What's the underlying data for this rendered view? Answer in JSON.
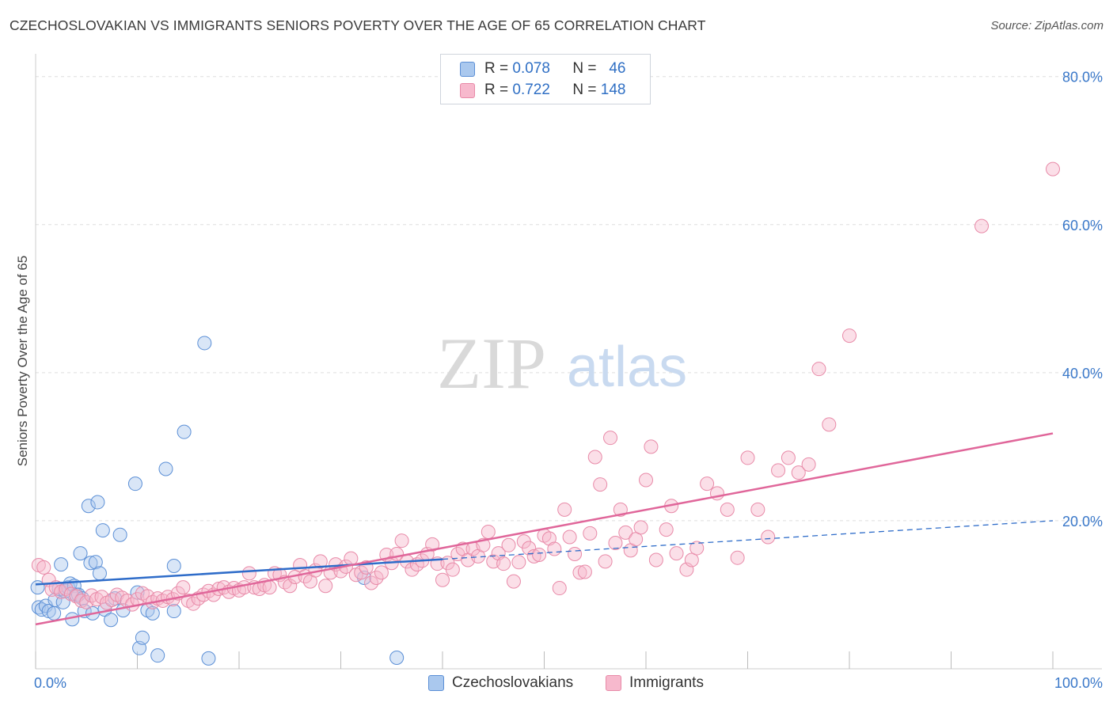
{
  "header": {
    "title": "CZECHOSLOVAKIAN VS IMMIGRANTS SENIORS POVERTY OVER THE AGE OF 65 CORRELATION CHART",
    "source": "Source: ZipAtlas.com"
  },
  "watermark": {
    "zip": "ZIP",
    "atlas": "atlas"
  },
  "legend": {
    "rows": [
      {
        "r_label": "R =",
        "r_value": "0.078",
        "n_label": "N =",
        "n_value": "46"
      },
      {
        "r_label": "R =",
        "r_value": "0.722",
        "n_label": "N =",
        "n_value": "148"
      }
    ]
  },
  "bottom_legend": {
    "series1": "Czechoslovakians",
    "series2": "Immigrants"
  },
  "colors": {
    "czech_fill": "#aac8ee",
    "czech_stroke": "#5b8fd6",
    "czech_line": "#2e6cc9",
    "imm_fill": "#f7b9cd",
    "imm_stroke": "#e88aa8",
    "imm_line": "#e0669a",
    "tick_color": "#3a78c9",
    "grid": "#dddddd"
  },
  "chart_data": {
    "type": "scatter",
    "title": "CZECHOSLOVAKIAN VS IMMIGRANTS SENIORS POVERTY OVER THE AGE OF 65 CORRELATION CHART",
    "xlabel": "",
    "ylabel": "Seniors Poverty Over the Age of 65",
    "xlim": [
      0,
      100
    ],
    "ylim": [
      0,
      82
    ],
    "x_tick_labels": [
      {
        "value": 0,
        "label": "0.0%"
      },
      {
        "value": 100,
        "label": "100.0%"
      }
    ],
    "x_ticks": [
      0,
      10,
      20,
      30,
      40,
      50,
      60,
      70,
      80,
      90,
      100
    ],
    "y_ticks": [
      {
        "value": 20,
        "label": "20.0%"
      },
      {
        "value": 40,
        "label": "40.0%"
      },
      {
        "value": 60,
        "label": "60.0%"
      },
      {
        "value": 80,
        "label": "80.0%"
      }
    ],
    "grid": true,
    "legend_position": "top-center",
    "series": [
      {
        "name": "Czechoslovakians",
        "r": 0.078,
        "n": 46,
        "trend": {
          "x": [
            0,
            40
          ],
          "y": [
            11.4,
            14.8
          ],
          "dashed_extension_to": [
            100,
            20.0
          ]
        },
        "points": [
          [
            0.2,
            11.0
          ],
          [
            0.3,
            8.3
          ],
          [
            0.6,
            8.0
          ],
          [
            1.0,
            8.5
          ],
          [
            1.3,
            7.8
          ],
          [
            1.8,
            7.5
          ],
          [
            1.9,
            9.3
          ],
          [
            2.3,
            10.8
          ],
          [
            2.5,
            14.1
          ],
          [
            2.7,
            9.0
          ],
          [
            2.9,
            10.5
          ],
          [
            3.2,
            11.0
          ],
          [
            3.4,
            11.5
          ],
          [
            3.6,
            6.7
          ],
          [
            3.8,
            11.2
          ],
          [
            4.0,
            10.0
          ],
          [
            4.2,
            10.0
          ],
          [
            4.4,
            15.6
          ],
          [
            4.6,
            9.5
          ],
          [
            4.8,
            7.8
          ],
          [
            5.2,
            22.0
          ],
          [
            5.4,
            14.3
          ],
          [
            5.6,
            7.5
          ],
          [
            5.9,
            14.4
          ],
          [
            6.1,
            22.5
          ],
          [
            6.3,
            12.9
          ],
          [
            6.6,
            18.7
          ],
          [
            6.8,
            8.0
          ],
          [
            7.4,
            6.6
          ],
          [
            7.8,
            9.5
          ],
          [
            8.3,
            18.1
          ],
          [
            8.6,
            7.9
          ],
          [
            9.8,
            25.0
          ],
          [
            10.0,
            10.3
          ],
          [
            10.2,
            2.8
          ],
          [
            10.5,
            4.2
          ],
          [
            11.0,
            7.9
          ],
          [
            11.5,
            7.5
          ],
          [
            12.0,
            1.8
          ],
          [
            12.8,
            27.0
          ],
          [
            13.6,
            13.9
          ],
          [
            13.6,
            7.8
          ],
          [
            16.6,
            44.0
          ],
          [
            14.6,
            32.0
          ],
          [
            17.0,
            1.4
          ],
          [
            35.5,
            1.5
          ],
          [
            32.3,
            12.3
          ]
        ]
      },
      {
        "name": "Immigrants",
        "r": 0.722,
        "n": 148,
        "trend": {
          "x": [
            0,
            100
          ],
          "y": [
            6.0,
            31.8
          ]
        },
        "points": [
          [
            0.3,
            14.0
          ],
          [
            0.8,
            13.7
          ],
          [
            1.3,
            12.0
          ],
          [
            1.6,
            10.7
          ],
          [
            2.0,
            11.0
          ],
          [
            2.5,
            10.4
          ],
          [
            3.0,
            10.8
          ],
          [
            3.5,
            10.1
          ],
          [
            4.0,
            9.8
          ],
          [
            4.5,
            9.2
          ],
          [
            5.0,
            9.0
          ],
          [
            5.5,
            9.9
          ],
          [
            6.0,
            9.4
          ],
          [
            6.5,
            9.7
          ],
          [
            7.0,
            8.9
          ],
          [
            7.5,
            9.3
          ],
          [
            8.0,
            10.0
          ],
          [
            8.5,
            9.6
          ],
          [
            9.0,
            9.2
          ],
          [
            9.5,
            8.7
          ],
          [
            10.0,
            9.4
          ],
          [
            10.5,
            10.2
          ],
          [
            11.0,
            9.8
          ],
          [
            11.5,
            9.0
          ],
          [
            12.0,
            9.5
          ],
          [
            12.5,
            9.2
          ],
          [
            13.0,
            9.7
          ],
          [
            13.5,
            9.4
          ],
          [
            14.0,
            10.2
          ],
          [
            14.5,
            11.0
          ],
          [
            15.0,
            9.2
          ],
          [
            15.5,
            8.8
          ],
          [
            16.0,
            9.5
          ],
          [
            16.5,
            10.0
          ],
          [
            17.0,
            10.5
          ],
          [
            17.5,
            10.0
          ],
          [
            18.0,
            10.8
          ],
          [
            18.5,
            11.0
          ],
          [
            19.0,
            10.4
          ],
          [
            19.5,
            10.9
          ],
          [
            20.0,
            10.6
          ],
          [
            20.5,
            11.0
          ],
          [
            21.0,
            12.9
          ],
          [
            21.5,
            11.0
          ],
          [
            22.0,
            10.8
          ],
          [
            22.5,
            11.3
          ],
          [
            23.0,
            11.0
          ],
          [
            23.5,
            12.9
          ],
          [
            24.0,
            12.7
          ],
          [
            24.5,
            11.7
          ],
          [
            25.0,
            11.2
          ],
          [
            25.5,
            12.4
          ],
          [
            26.0,
            14.0
          ],
          [
            26.5,
            12.5
          ],
          [
            27.0,
            11.8
          ],
          [
            27.5,
            13.3
          ],
          [
            28.0,
            14.5
          ],
          [
            28.5,
            11.2
          ],
          [
            29.0,
            13.0
          ],
          [
            29.5,
            14.1
          ],
          [
            30.0,
            13.2
          ],
          [
            30.5,
            13.8
          ],
          [
            31.0,
            14.9
          ],
          [
            31.5,
            12.7
          ],
          [
            32.0,
            13.0
          ],
          [
            32.5,
            13.7
          ],
          [
            33.0,
            11.6
          ],
          [
            33.5,
            12.3
          ],
          [
            34.0,
            13.0
          ],
          [
            34.5,
            15.4
          ],
          [
            35.0,
            14.3
          ],
          [
            35.5,
            15.5
          ],
          [
            36.0,
            17.3
          ],
          [
            36.5,
            14.5
          ],
          [
            37.0,
            13.4
          ],
          [
            37.5,
            14.1
          ],
          [
            38.0,
            14.6
          ],
          [
            38.5,
            15.5
          ],
          [
            39.0,
            16.8
          ],
          [
            39.5,
            14.2
          ],
          [
            40.0,
            12.0
          ],
          [
            40.5,
            14.3
          ],
          [
            41.0,
            13.4
          ],
          [
            41.5,
            15.5
          ],
          [
            42.0,
            16.2
          ],
          [
            42.5,
            14.7
          ],
          [
            43.0,
            16.2
          ],
          [
            43.5,
            15.2
          ],
          [
            44.0,
            16.7
          ],
          [
            44.5,
            18.5
          ],
          [
            45.0,
            14.5
          ],
          [
            45.5,
            15.6
          ],
          [
            46.0,
            14.2
          ],
          [
            46.5,
            16.7
          ],
          [
            47.0,
            11.8
          ],
          [
            47.5,
            14.4
          ],
          [
            48.0,
            17.2
          ],
          [
            48.5,
            16.3
          ],
          [
            49.0,
            15.2
          ],
          [
            49.5,
            15.4
          ],
          [
            50.0,
            18.0
          ],
          [
            50.5,
            17.6
          ],
          [
            51.0,
            16.2
          ],
          [
            51.5,
            10.9
          ],
          [
            52.0,
            21.5
          ],
          [
            52.5,
            17.8
          ],
          [
            53.0,
            15.5
          ],
          [
            53.5,
            13.0
          ],
          [
            54.0,
            13.1
          ],
          [
            54.5,
            18.3
          ],
          [
            55.0,
            28.6
          ],
          [
            55.5,
            24.9
          ],
          [
            56.0,
            14.5
          ],
          [
            56.5,
            31.2
          ],
          [
            57.0,
            17.0
          ],
          [
            57.5,
            21.5
          ],
          [
            58.0,
            18.4
          ],
          [
            58.5,
            16.0
          ],
          [
            59.0,
            17.5
          ],
          [
            59.5,
            19.1
          ],
          [
            60.0,
            25.5
          ],
          [
            60.5,
            30.0
          ],
          [
            61.0,
            14.7
          ],
          [
            62.0,
            18.8
          ],
          [
            62.5,
            22.0
          ],
          [
            63.0,
            15.6
          ],
          [
            64.0,
            13.4
          ],
          [
            64.5,
            14.7
          ],
          [
            65.0,
            16.3
          ],
          [
            66.0,
            25.0
          ],
          [
            67.0,
            23.7
          ],
          [
            68.0,
            21.5
          ],
          [
            69.0,
            15.0
          ],
          [
            70.0,
            28.5
          ],
          [
            71.0,
            21.5
          ],
          [
            72.0,
            17.8
          ],
          [
            73.0,
            26.8
          ],
          [
            74.0,
            28.5
          ],
          [
            75.0,
            26.5
          ],
          [
            76.0,
            27.6
          ],
          [
            77.0,
            40.5
          ],
          [
            78.0,
            33.0
          ],
          [
            80.0,
            45.0
          ],
          [
            100.0,
            67.5
          ],
          [
            93.0,
            59.8
          ]
        ]
      }
    ]
  }
}
